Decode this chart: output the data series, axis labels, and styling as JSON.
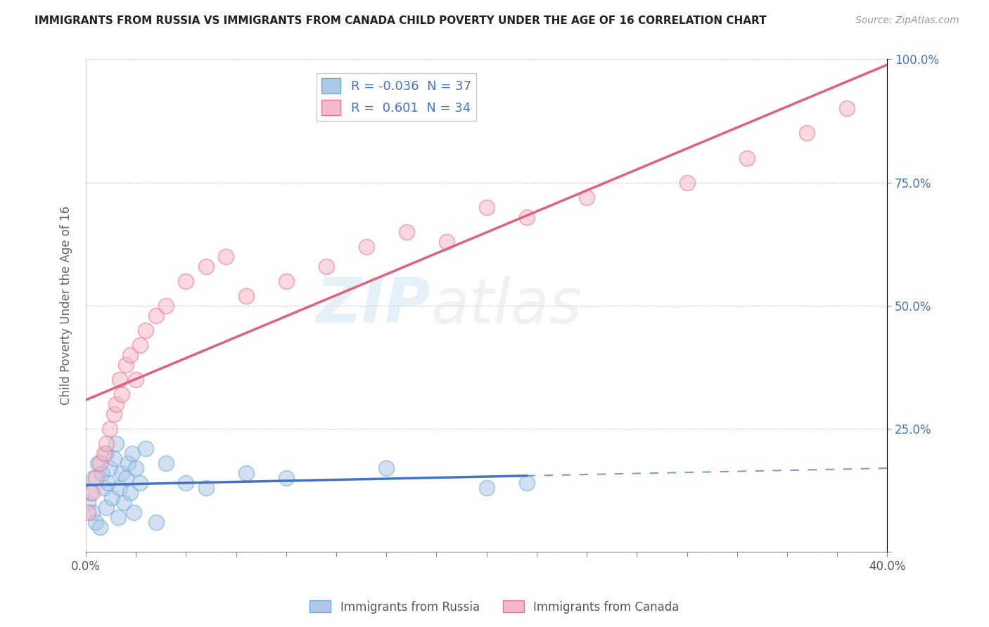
{
  "title": "IMMIGRANTS FROM RUSSIA VS IMMIGRANTS FROM CANADA CHILD POVERTY UNDER THE AGE OF 16 CORRELATION CHART",
  "source": "Source: ZipAtlas.com",
  "ylabel": "Child Poverty Under the Age of 16",
  "xlabel_russia": "Immigrants from Russia",
  "xlabel_canada": "Immigrants from Canada",
  "xlim": [
    0.0,
    0.4
  ],
  "ylim": [
    0.0,
    1.0
  ],
  "xticks_minor": [
    0.0,
    0.025,
    0.05,
    0.075,
    0.1,
    0.125,
    0.15,
    0.175,
    0.2,
    0.225,
    0.25,
    0.275,
    0.3,
    0.325,
    0.35,
    0.375,
    0.4
  ],
  "xtick_labels_show": {
    "0.0": "0.0%",
    "0.40": "40.0%"
  },
  "yticks": [
    0.0,
    0.25,
    0.5,
    0.75,
    1.0
  ],
  "ytick_labels_right": [
    "",
    "25.0%",
    "50.0%",
    "75.0%",
    "100.0%"
  ],
  "russia_color": "#adc8e8",
  "canada_color": "#f5b8c8",
  "russia_edge_color": "#6aaad4",
  "canada_edge_color": "#e87090",
  "russia_line_color": "#4472c4",
  "canada_line_color": "#e06080",
  "R_russia": -0.036,
  "N_russia": 37,
  "R_canada": 0.601,
  "N_canada": 34,
  "russia_x": [
    0.001,
    0.002,
    0.003,
    0.004,
    0.005,
    0.006,
    0.007,
    0.008,
    0.009,
    0.01,
    0.01,
    0.011,
    0.012,
    0.013,
    0.014,
    0.015,
    0.016,
    0.017,
    0.018,
    0.019,
    0.02,
    0.021,
    0.022,
    0.023,
    0.024,
    0.025,
    0.027,
    0.03,
    0.035,
    0.04,
    0.05,
    0.06,
    0.08,
    0.1,
    0.15,
    0.2,
    0.22
  ],
  "russia_y": [
    0.1,
    0.12,
    0.08,
    0.15,
    0.06,
    0.18,
    0.05,
    0.16,
    0.13,
    0.2,
    0.09,
    0.14,
    0.17,
    0.11,
    0.19,
    0.22,
    0.07,
    0.13,
    0.16,
    0.1,
    0.15,
    0.18,
    0.12,
    0.2,
    0.08,
    0.17,
    0.14,
    0.21,
    0.06,
    0.18,
    0.14,
    0.13,
    0.16,
    0.15,
    0.17,
    0.13,
    0.14
  ],
  "canada_x": [
    0.001,
    0.003,
    0.005,
    0.007,
    0.009,
    0.01,
    0.012,
    0.014,
    0.015,
    0.017,
    0.018,
    0.02,
    0.022,
    0.025,
    0.027,
    0.03,
    0.035,
    0.04,
    0.05,
    0.06,
    0.07,
    0.08,
    0.1,
    0.12,
    0.14,
    0.16,
    0.18,
    0.2,
    0.22,
    0.25,
    0.3,
    0.33,
    0.36,
    0.38
  ],
  "canada_y": [
    0.08,
    0.12,
    0.15,
    0.18,
    0.2,
    0.22,
    0.25,
    0.28,
    0.3,
    0.35,
    0.32,
    0.38,
    0.4,
    0.35,
    0.42,
    0.45,
    0.48,
    0.5,
    0.55,
    0.58,
    0.6,
    0.52,
    0.55,
    0.58,
    0.62,
    0.65,
    0.63,
    0.7,
    0.68,
    0.72,
    0.75,
    0.8,
    0.85,
    0.9
  ],
  "russia_line_solid_end": 0.22,
  "watermark_zip": "ZIP",
  "watermark_atlas": "atlas",
  "background_color": "#ffffff",
  "grid_color": "#d0d0d0",
  "legend_color": "#4472c4"
}
